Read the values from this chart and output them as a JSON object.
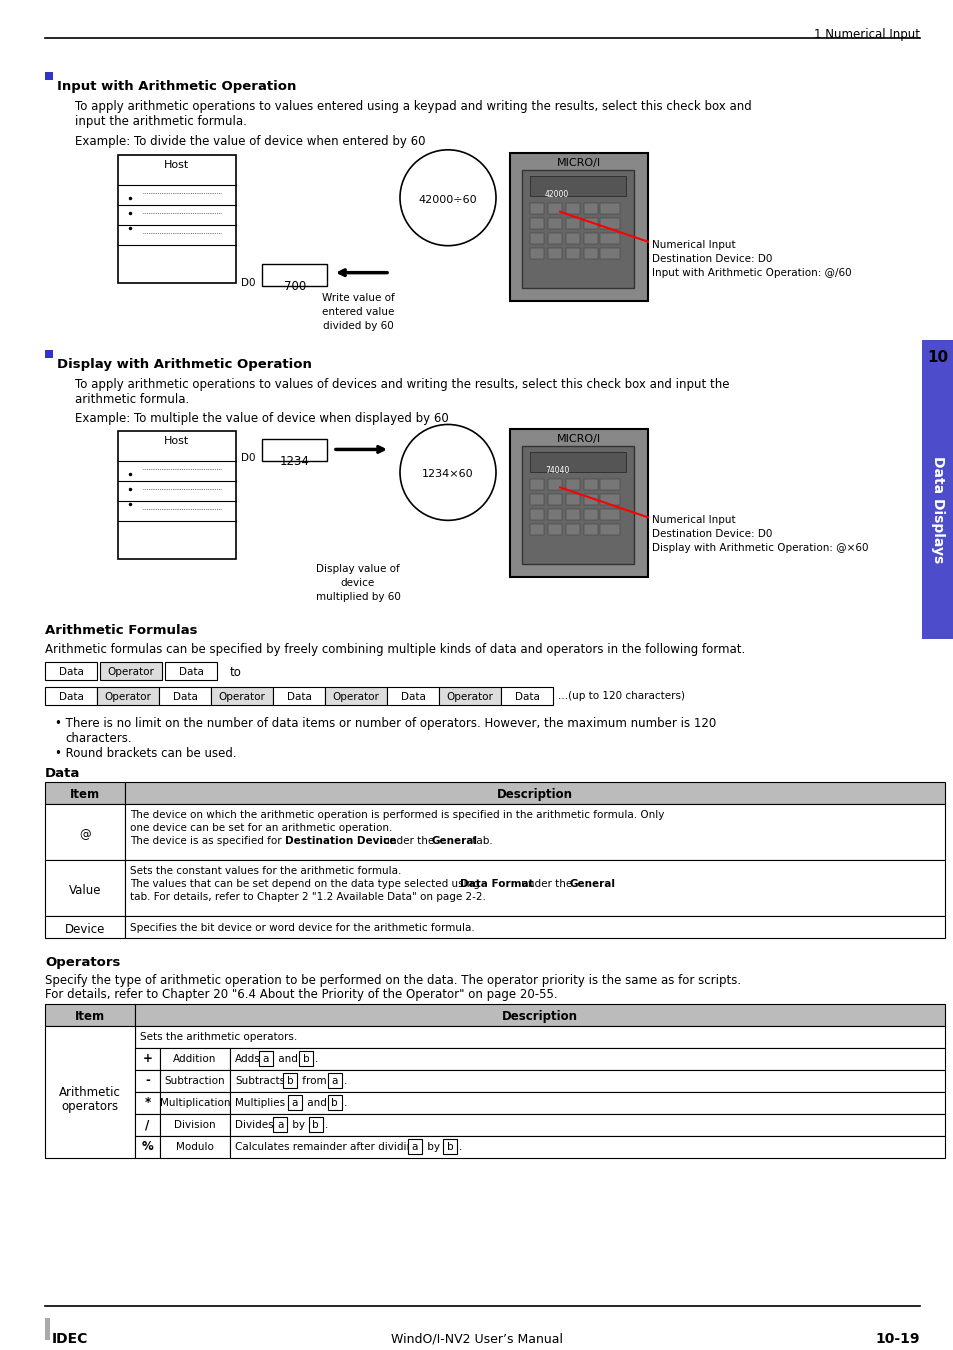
{
  "page_title_right": "1 Numerical Input",
  "footer_left": "IDEC",
  "footer_center": "WindO/I-NV2 User’s Manual",
  "footer_right": "10-19",
  "section1_bullet": "Input with Arithmetic Operation",
  "section1_text1": "To apply arithmetic operations to values entered using a keypad and writing the results, select this check box and",
  "section1_text2": "input the arithmetic formula.",
  "section1_example": "Example: To divide the value of device when entered by 60",
  "section2_bullet": "Display with Arithmetic Operation",
  "section2_text1": "To apply arithmetic operations to values of devices and writing the results, select this check box and input the",
  "section2_text2": "arithmetic formula.",
  "section2_example": "Example: To multiple the value of device when displayed by 60",
  "section3_title": "Arithmetic Formulas",
  "section3_text": "Arithmetic formulas can be specified by freely combining multiple kinds of data and operators in the following format.",
  "bullet_color": "#3333cc",
  "sidebar_color": "#4d4dcc",
  "table_header_color": "#bbbbbb"
}
